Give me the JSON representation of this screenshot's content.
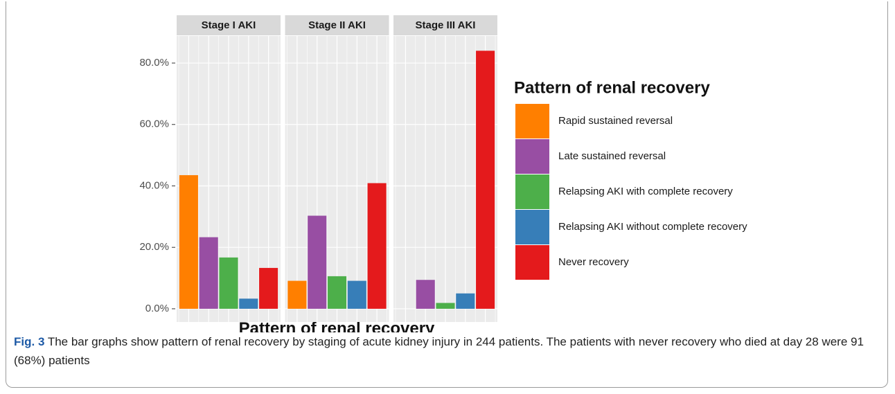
{
  "chart_data": {
    "type": "bar",
    "categories": [
      "Rapid sustained reversal",
      "Late sustained reversal",
      "Relapsing AKI with complete recovery",
      "Relapsing AKI without complete recovery",
      "Never recovery"
    ],
    "colors": [
      "#ff7f00",
      "#984ea3",
      "#4daf4a",
      "#377eb8",
      "#e41a1c"
    ],
    "panels": [
      {
        "label": "Stage I AKI",
        "values": [
          43.5,
          23.3,
          16.7,
          3.3,
          13.3
        ]
      },
      {
        "label": "Stage II AKI",
        "values": [
          9.1,
          30.3,
          10.6,
          9.1,
          40.9
        ]
      },
      {
        "label": "Stage III AKI",
        "values": [
          0,
          9.4,
          1.9,
          5.0,
          84.0
        ]
      }
    ],
    "ylim": [
      -4.3,
      88.8
    ],
    "yticks": [
      {
        "value": 0,
        "label": "0.0%"
      },
      {
        "value": 20,
        "label": "20.0%"
      },
      {
        "value": 40,
        "label": "40.0%"
      },
      {
        "value": 60,
        "label": "60.0%"
      },
      {
        "value": 80,
        "label": "80.0%"
      }
    ],
    "x_label": "Pattern of renal recovery",
    "legend_title": "Pattern of renal recovery",
    "grid": true
  },
  "caption": {
    "label": "Fig. 3",
    "text": "The bar graphs show pattern of renal recovery by staging of acute kidney injury in 244 patients. The patients with never recovery who died at day 28 were 91 (68%) patients"
  }
}
